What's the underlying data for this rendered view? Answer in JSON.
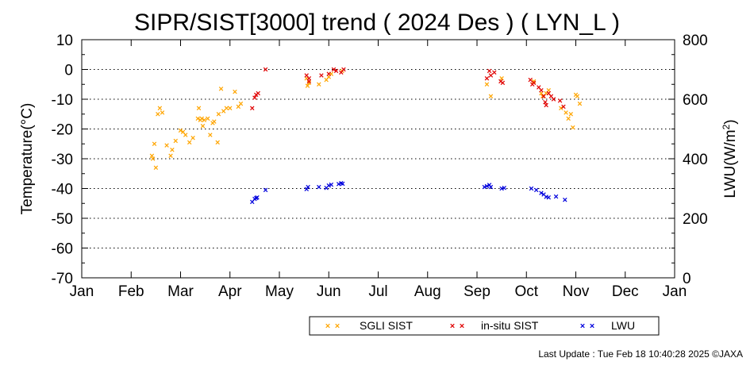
{
  "chart_data": {
    "type": "scatter",
    "title": "SIPR/SIST[3000] trend ( 2024 Des ) ( LYN_L )",
    "ylabel_left": "Temperature(°C)",
    "ylabel_right_prefix": "LWU(W/m",
    "ylabel_right_sup": "2",
    "ylabel_right_suffix": ")",
    "ylim_left": [
      -70,
      10
    ],
    "ylim_right": [
      0,
      800
    ],
    "xlim": [
      0,
      12
    ],
    "grid": "horizontal dotted",
    "left_ticks": [
      10,
      0,
      -10,
      -20,
      -30,
      -40,
      -50,
      -60,
      -70
    ],
    "left_tick_labels": [
      "10",
      "0",
      "-10",
      "-20",
      "-30",
      "-40",
      "-50",
      "-60",
      "-70"
    ],
    "right_ticks": [
      800,
      600,
      400,
      200,
      0
    ],
    "right_tick_labels": [
      "800",
      "600",
      "400",
      "200",
      "0"
    ],
    "month_ticks": [
      0,
      1,
      2,
      3,
      4,
      5,
      6,
      7,
      8,
      9,
      10,
      11,
      12
    ],
    "month_labels": [
      "Jan",
      "Feb",
      "Mar",
      "Apr",
      "May",
      "Jun",
      "Jul",
      "Aug",
      "Sep",
      "Oct",
      "Nov",
      "Dec",
      "Jan"
    ],
    "legend_position": "bottom-right",
    "series": [
      {
        "name": "SGLI SIST",
        "color": "#ffa500",
        "axis": "left",
        "points": [
          [
            1.42,
            -29
          ],
          [
            1.44,
            -30
          ],
          [
            1.47,
            -25
          ],
          [
            1.5,
            -33
          ],
          [
            1.54,
            -15
          ],
          [
            1.58,
            -13
          ],
          [
            1.63,
            -14.5
          ],
          [
            1.72,
            -25.5
          ],
          [
            1.8,
            -29
          ],
          [
            1.83,
            -27
          ],
          [
            1.9,
            -24
          ],
          [
            2.0,
            -20.5
          ],
          [
            2.05,
            -21
          ],
          [
            2.1,
            -22
          ],
          [
            2.18,
            -24.5
          ],
          [
            2.25,
            -23
          ],
          [
            2.35,
            -16.5
          ],
          [
            2.37,
            -13
          ],
          [
            2.4,
            -17
          ],
          [
            2.43,
            -16.5
          ],
          [
            2.45,
            -19
          ],
          [
            2.48,
            -17
          ],
          [
            2.55,
            -16.5
          ],
          [
            2.6,
            -22
          ],
          [
            2.65,
            -18
          ],
          [
            2.68,
            -17.5
          ],
          [
            2.75,
            -24.5
          ],
          [
            2.77,
            -15
          ],
          [
            2.82,
            -6.5
          ],
          [
            2.87,
            -14
          ],
          [
            2.93,
            -13
          ],
          [
            3.0,
            -13
          ],
          [
            3.1,
            -7.5
          ],
          [
            3.17,
            -12.5
          ],
          [
            3.22,
            -11.5
          ],
          [
            4.55,
            -3
          ],
          [
            4.57,
            -5.5
          ],
          [
            4.6,
            -4.5
          ],
          [
            4.8,
            -5
          ],
          [
            4.95,
            -3.5
          ],
          [
            5.0,
            -2.5
          ],
          [
            5.05,
            -1.5
          ],
          [
            5.27,
            -0.5
          ],
          [
            8.2,
            -5
          ],
          [
            8.28,
            -9
          ],
          [
            8.5,
            -3
          ],
          [
            9.15,
            -4
          ],
          [
            9.3,
            -8
          ],
          [
            9.33,
            -9
          ],
          [
            9.4,
            -8
          ],
          [
            9.45,
            -7
          ],
          [
            9.7,
            -13
          ],
          [
            9.8,
            -14.5
          ],
          [
            9.85,
            -16.5
          ],
          [
            9.9,
            -15
          ],
          [
            9.94,
            -19.5
          ],
          [
            10.0,
            -8.5
          ],
          [
            10.03,
            -9
          ],
          [
            10.08,
            -11.5
          ]
        ]
      },
      {
        "name": "in-situ SIST",
        "color": "#e00000",
        "axis": "left",
        "points": [
          [
            3.45,
            -13
          ],
          [
            3.5,
            -9.5
          ],
          [
            3.53,
            -8.5
          ],
          [
            3.57,
            -8
          ],
          [
            3.72,
            0
          ],
          [
            4.55,
            -2
          ],
          [
            4.6,
            -3
          ],
          [
            4.6,
            -4
          ],
          [
            4.85,
            -2
          ],
          [
            5.0,
            -1.5
          ],
          [
            5.1,
            0
          ],
          [
            5.15,
            -0.5
          ],
          [
            5.25,
            -1
          ],
          [
            5.3,
            0
          ],
          [
            8.2,
            -3
          ],
          [
            8.25,
            -0.5
          ],
          [
            8.28,
            -2
          ],
          [
            8.35,
            -1
          ],
          [
            8.48,
            -4
          ],
          [
            8.52,
            -4.5
          ],
          [
            9.08,
            -3.5
          ],
          [
            9.12,
            -5
          ],
          [
            9.15,
            -4.5
          ],
          [
            9.25,
            -6
          ],
          [
            9.3,
            -7
          ],
          [
            9.35,
            -9
          ],
          [
            9.38,
            -11
          ],
          [
            9.4,
            -12
          ],
          [
            9.45,
            -8
          ],
          [
            9.5,
            -9
          ],
          [
            9.55,
            -10
          ],
          [
            9.68,
            -10.5
          ],
          [
            9.75,
            -12.5
          ]
        ]
      },
      {
        "name": "LWU",
        "color": "#0000dd",
        "axis": "right",
        "points": [
          [
            3.45,
            255
          ],
          [
            3.5,
            265
          ],
          [
            3.53,
            268
          ],
          [
            3.55,
            270
          ],
          [
            3.72,
            295
          ],
          [
            4.55,
            298
          ],
          [
            4.58,
            305
          ],
          [
            4.8,
            305
          ],
          [
            4.95,
            302
          ],
          [
            5.0,
            310
          ],
          [
            5.05,
            313
          ],
          [
            5.2,
            315
          ],
          [
            5.25,
            318
          ],
          [
            5.28,
            316
          ],
          [
            8.15,
            305
          ],
          [
            8.2,
            308
          ],
          [
            8.25,
            312
          ],
          [
            8.28,
            305
          ],
          [
            8.5,
            300
          ],
          [
            8.55,
            302
          ],
          [
            9.1,
            300
          ],
          [
            9.2,
            295
          ],
          [
            9.3,
            285
          ],
          [
            9.35,
            280
          ],
          [
            9.4,
            272
          ],
          [
            9.45,
            270
          ],
          [
            9.6,
            273
          ],
          [
            9.78,
            262
          ]
        ]
      }
    ]
  },
  "footer": "Last Update : Tue Feb 18 10:40:28 2025  ©JAXA"
}
